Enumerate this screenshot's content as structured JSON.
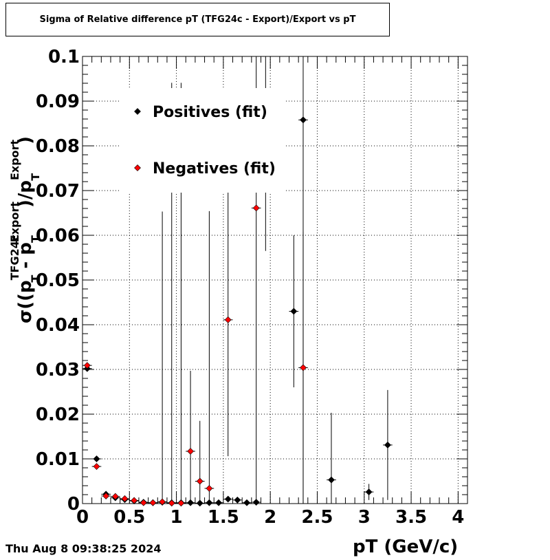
{
  "title": "Sigma of Relative difference pT (TFG24c - Export)/Export vs pT",
  "timestamp": "Thu Aug  8 09:38:25 2024",
  "chart_data": {
    "type": "scatter",
    "title": "Sigma of Relative difference pT (TFG24c - Export)/Export vs pT",
    "xlabel": "pT (GeV/c)",
    "ylabel": {
      "sigma": "σ",
      "open": "((p",
      "sup1": "TFG24c",
      "sub1": "T",
      "minus": " - p",
      "sup2": "Export",
      "sub2": "T",
      "mid": ")/p",
      "sup3": "Export",
      "sub3": "T",
      "close": ")"
    },
    "xlim": [
      0,
      4.1
    ],
    "ylim": [
      0,
      0.1
    ],
    "xticks": [
      "0",
      "0.5",
      "1",
      "1.5",
      "2",
      "2.5",
      "3",
      "3.5",
      "4"
    ],
    "xtick_values": [
      0,
      0.5,
      1,
      1.5,
      2,
      2.5,
      3,
      3.5,
      4
    ],
    "yticks": [
      "0",
      "0.01",
      "0.02",
      "0.03",
      "0.04",
      "0.05",
      "0.06",
      "0.07",
      "0.08",
      "0.09",
      "0.1"
    ],
    "ytick_values": [
      0,
      0.01,
      0.02,
      0.03,
      0.04,
      0.05,
      0.06,
      0.07,
      0.08,
      0.09,
      0.1
    ],
    "grid": true,
    "legend_position": "top-left inside",
    "series": [
      {
        "name": "Positives (fit)",
        "color": "#000000",
        "points": [
          {
            "x": 0.05,
            "y": 0.0302,
            "err": 0.0005
          },
          {
            "x": 0.15,
            "y": 0.01,
            "err": 0.0003
          },
          {
            "x": 0.25,
            "y": 0.0021,
            "err": 0.0003
          },
          {
            "x": 0.35,
            "y": 0.0013,
            "err": 0.0003
          },
          {
            "x": 0.45,
            "y": 0.0009,
            "err": 0.0003
          },
          {
            "x": 0.55,
            "y": 0.0006,
            "err": 0.0003
          },
          {
            "x": 0.65,
            "y": 0.0003,
            "err": 0.0003
          },
          {
            "x": 0.75,
            "y": 0.0002,
            "err": 0.0003
          },
          {
            "x": 0.85,
            "y": 0.0003,
            "err": 0.065
          },
          {
            "x": 0.95,
            "y": 0.0002,
            "err": 0.0003
          },
          {
            "x": 1.05,
            "y": 0.0002,
            "err": 0.0003
          },
          {
            "x": 1.15,
            "y": 0.0002,
            "err": 0.0003
          },
          {
            "x": 1.25,
            "y": 0.0001,
            "err": 0.0003
          },
          {
            "x": 1.35,
            "y": 0.0002,
            "err": 0.0003
          },
          {
            "x": 1.45,
            "y": 0.0002,
            "err": 0.0003
          },
          {
            "x": 1.55,
            "y": 0.001,
            "err": 0.0003
          },
          {
            "x": 1.65,
            "y": 0.0008,
            "err": 0.0003
          },
          {
            "x": 1.75,
            "y": 0.0002,
            "err": 0.0003
          },
          {
            "x": 1.85,
            "y": 0.0003,
            "err": 0.0003
          },
          {
            "x": 1.95,
            "y": 0.0895,
            "err": 0.033
          },
          {
            "x": 2.25,
            "y": 0.043,
            "err": 0.017
          },
          {
            "x": 2.35,
            "y": 0.0858,
            "err": 0.09
          },
          {
            "x": 2.65,
            "y": 0.0053,
            "err": 0.015
          },
          {
            "x": 3.05,
            "y": 0.0026,
            "err": 0.0018
          },
          {
            "x": 3.25,
            "y": 0.0131,
            "err": 0.0123
          }
        ]
      },
      {
        "name": "Negatives (fit)",
        "color": "#ff0000",
        "points": [
          {
            "x": 0.05,
            "y": 0.0309,
            "err": 0.0005
          },
          {
            "x": 0.15,
            "y": 0.0083,
            "err": 0.0003
          },
          {
            "x": 0.25,
            "y": 0.0017,
            "err": 0.0003
          },
          {
            "x": 0.35,
            "y": 0.0016,
            "err": 0.0003
          },
          {
            "x": 0.45,
            "y": 0.0011,
            "err": 0.0003
          },
          {
            "x": 0.55,
            "y": 0.0007,
            "err": 0.0003
          },
          {
            "x": 0.65,
            "y": 0.0002,
            "err": 0.0003
          },
          {
            "x": 0.75,
            "y": 0.0002,
            "err": 0.0003
          },
          {
            "x": 0.85,
            "y": 0.0004,
            "err": 0.0003
          },
          {
            "x": 0.95,
            "y": 0.0001,
            "err": 0.094
          },
          {
            "x": 1.05,
            "y": 0.0001,
            "err": 0.094
          },
          {
            "x": 1.15,
            "y": 0.0117,
            "err": 0.018
          },
          {
            "x": 1.25,
            "y": 0.005,
            "err": 0.0135
          },
          {
            "x": 1.35,
            "y": 0.0034,
            "err": 0.062
          },
          {
            "x": 1.55,
            "y": 0.0411,
            "err": 0.0305
          },
          {
            "x": 1.85,
            "y": 0.0661,
            "err": 0.066
          },
          {
            "x": 2.35,
            "y": 0.0304,
            "err": 0.0304
          }
        ]
      }
    ]
  }
}
